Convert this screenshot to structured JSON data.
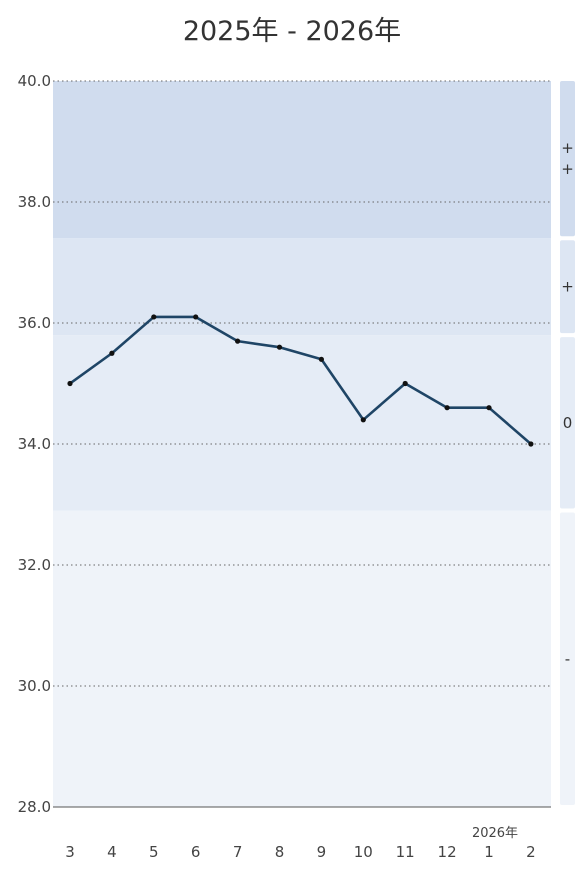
{
  "chart_data": {
    "type": "line",
    "title": "2025年 - 2026年",
    "categories": [
      "3",
      "4",
      "5",
      "6",
      "7",
      "8",
      "9",
      "10",
      "11",
      "12",
      "1",
      "2"
    ],
    "x_year_marker": {
      "category": "1",
      "label": "2026年"
    },
    "y_ticks": [
      "28.0",
      "30.0",
      "32.0",
      "34.0",
      "36.0",
      "38.0",
      "40.0"
    ],
    "ylim": [
      28.0,
      40.0
    ],
    "grid": "horizontal-dotted",
    "series": [
      {
        "values": [
          35.0,
          35.5,
          36.1,
          36.1,
          35.7,
          35.6,
          35.4,
          34.4,
          35.0,
          34.6,
          34.6,
          34.0
        ],
        "color": "#1f4566"
      }
    ],
    "bands": [
      {
        "label": "++",
        "from": 37.4,
        "to": 40.0,
        "color": "#d0dcee"
      },
      {
        "label": "+",
        "from": 35.8,
        "to": 37.4,
        "color": "#dde6f3"
      },
      {
        "label": "0",
        "from": 32.9,
        "to": 35.8,
        "color": "#e5ecf6"
      },
      {
        "label": "-",
        "from": 28.0,
        "to": 32.9,
        "color": "#eff3f9"
      }
    ]
  }
}
